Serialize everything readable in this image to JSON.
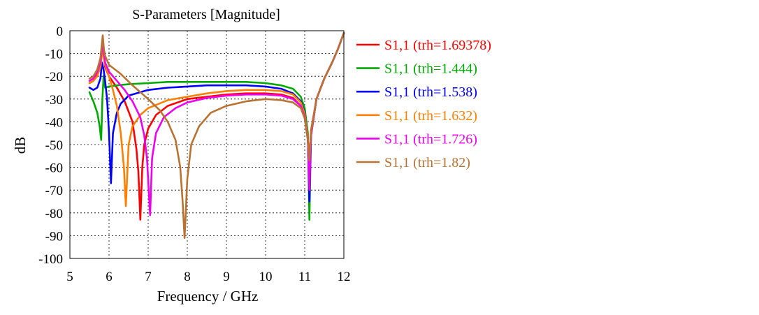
{
  "chart_data": {
    "type": "line",
    "title": "S-Parameters [Magnitude]",
    "xlabel": "Frequency / GHz",
    "ylabel": "dB",
    "xlim": [
      5,
      12
    ],
    "ylim": [
      -100,
      0
    ],
    "xticks": [
      5,
      6,
      7,
      8,
      9,
      10,
      11,
      12
    ],
    "yticks": [
      0,
      -10,
      -20,
      -30,
      -40,
      -50,
      -60,
      -70,
      -80,
      -90,
      -100
    ],
    "grid": true,
    "legend_position": "right",
    "series": [
      {
        "name": "S1,1 (trh=1.69378)",
        "color": "#ff0000",
        "x": [
          5.5,
          5.6,
          5.7,
          5.78,
          5.84,
          5.87,
          5.9,
          6.0,
          6.2,
          6.4,
          6.6,
          6.7,
          6.75,
          6.8,
          6.85,
          6.9,
          7.0,
          7.2,
          7.5,
          8.0,
          8.5,
          9.0,
          9.5,
          10.0,
          10.4,
          10.7,
          10.9,
          11.0,
          11.08,
          11.12,
          11.16,
          11.3,
          11.5,
          11.7,
          11.85,
          12.0
        ],
        "y": [
          -23,
          -22,
          -19,
          -15,
          -5,
          -11,
          -16,
          -20,
          -25,
          -31,
          -40,
          -52,
          -62,
          -83,
          -60,
          -50,
          -43,
          -37,
          -33,
          -30,
          -29,
          -28,
          -27.5,
          -27.5,
          -28,
          -29.5,
          -33,
          -38,
          -48,
          -57,
          -44,
          -30,
          -21,
          -14,
          -8,
          -1
        ]
      },
      {
        "name": "S1,1 (trh=1.444)",
        "color": "#00aa00",
        "x": [
          5.5,
          5.6,
          5.7,
          5.76,
          5.8,
          5.83,
          5.86,
          5.9,
          6.0,
          6.2,
          6.5,
          7.0,
          7.5,
          8.0,
          8.5,
          9.0,
          9.5,
          10.0,
          10.4,
          10.7,
          10.9,
          11.0,
          11.08,
          11.12,
          11.16,
          11.3,
          11.5,
          11.7,
          11.85,
          12.0
        ],
        "y": [
          -27,
          -31,
          -36,
          -42,
          -48,
          -30,
          -20,
          -25,
          -24.5,
          -24,
          -23.5,
          -23,
          -22.5,
          -22.5,
          -22.5,
          -22.5,
          -22.5,
          -23,
          -24,
          -25.5,
          -29,
          -34,
          -45,
          -83,
          -46,
          -30,
          -21,
          -14,
          -8,
          -1
        ]
      },
      {
        "name": "S1,1 (trh=1.538)",
        "color": "#0000ff",
        "x": [
          5.5,
          5.6,
          5.7,
          5.78,
          5.82,
          5.86,
          5.9,
          5.95,
          6.0,
          6.05,
          6.1,
          6.2,
          6.3,
          6.5,
          7.0,
          7.5,
          8.0,
          8.5,
          9.0,
          9.5,
          10.0,
          10.4,
          10.7,
          10.9,
          11.0,
          11.08,
          11.12,
          11.16,
          11.3,
          11.5,
          11.7,
          11.85,
          12.0
        ],
        "y": [
          -25,
          -26,
          -25,
          -21,
          -14,
          -17,
          -22,
          -30,
          -45,
          -67,
          -45,
          -36,
          -32,
          -28.5,
          -26,
          -25,
          -24.5,
          -24,
          -24,
          -24,
          -24.5,
          -25.5,
          -27.5,
          -31,
          -36,
          -47,
          -75,
          -46,
          -30,
          -21,
          -14,
          -8,
          -1
        ]
      },
      {
        "name": "S1,1 (trh=1.632)",
        "color": "#ff8000",
        "x": [
          5.5,
          5.6,
          5.7,
          5.78,
          5.84,
          5.87,
          5.9,
          6.0,
          6.1,
          6.2,
          6.3,
          6.38,
          6.43,
          6.5,
          6.6,
          6.8,
          7.0,
          7.5,
          8.0,
          8.5,
          9.0,
          9.5,
          10.0,
          10.4,
          10.7,
          10.9,
          11.0,
          11.08,
          11.12,
          11.16,
          11.3,
          11.5,
          11.7,
          11.85,
          12.0
        ],
        "y": [
          -23,
          -22,
          -20,
          -16,
          -8,
          -12,
          -15,
          -20,
          -26,
          -33,
          -45,
          -60,
          -77,
          -50,
          -42,
          -37,
          -34,
          -30.5,
          -29,
          -27.5,
          -26.5,
          -26,
          -26,
          -26.5,
          -28,
          -31.5,
          -36.5,
          -47,
          -60,
          -45,
          -30,
          -21,
          -14,
          -8,
          -1
        ]
      },
      {
        "name": "S1,1 (trh=1.726)",
        "color": "#ee00ee",
        "x": [
          5.5,
          5.6,
          5.7,
          5.78,
          5.84,
          5.87,
          5.9,
          6.0,
          6.2,
          6.4,
          6.6,
          6.8,
          6.9,
          6.97,
          7.05,
          7.1,
          7.2,
          7.4,
          7.7,
          8.0,
          8.5,
          9.0,
          9.5,
          10.0,
          10.4,
          10.7,
          10.9,
          11.0,
          11.08,
          11.12,
          11.16,
          11.3,
          11.5,
          11.7,
          11.85,
          12.0
        ],
        "y": [
          -22,
          -21,
          -18,
          -14,
          -4,
          -10,
          -14,
          -18,
          -22,
          -26,
          -31,
          -38,
          -46,
          -56,
          -81,
          -56,
          -45,
          -38,
          -34,
          -31.5,
          -29.5,
          -28.5,
          -28,
          -28,
          -28.5,
          -30,
          -33,
          -38,
          -48,
          -70,
          -46,
          -30,
          -21,
          -14,
          -8,
          -1
        ]
      },
      {
        "name": "S1,1 (trh=1.82)",
        "color": "#b87333",
        "x": [
          5.5,
          5.6,
          5.7,
          5.78,
          5.84,
          5.87,
          5.9,
          6.0,
          6.3,
          6.6,
          7.0,
          7.3,
          7.5,
          7.7,
          7.82,
          7.88,
          7.93,
          8.0,
          8.1,
          8.3,
          8.6,
          9.0,
          9.5,
          10.0,
          10.4,
          10.7,
          10.9,
          11.0,
          11.08,
          11.12,
          11.16,
          11.3,
          11.5,
          11.7,
          11.85,
          12.0
        ],
        "y": [
          -21,
          -20,
          -17,
          -12,
          -2,
          -8,
          -11,
          -15,
          -19,
          -24,
          -30,
          -35,
          -40,
          -48,
          -60,
          -75,
          -91,
          -65,
          -50,
          -42,
          -36,
          -33,
          -31,
          -30,
          -30.5,
          -31.5,
          -34,
          -38.5,
          -48,
          -57,
          -45,
          -30,
          -21,
          -14,
          -8,
          -1
        ]
      }
    ]
  }
}
